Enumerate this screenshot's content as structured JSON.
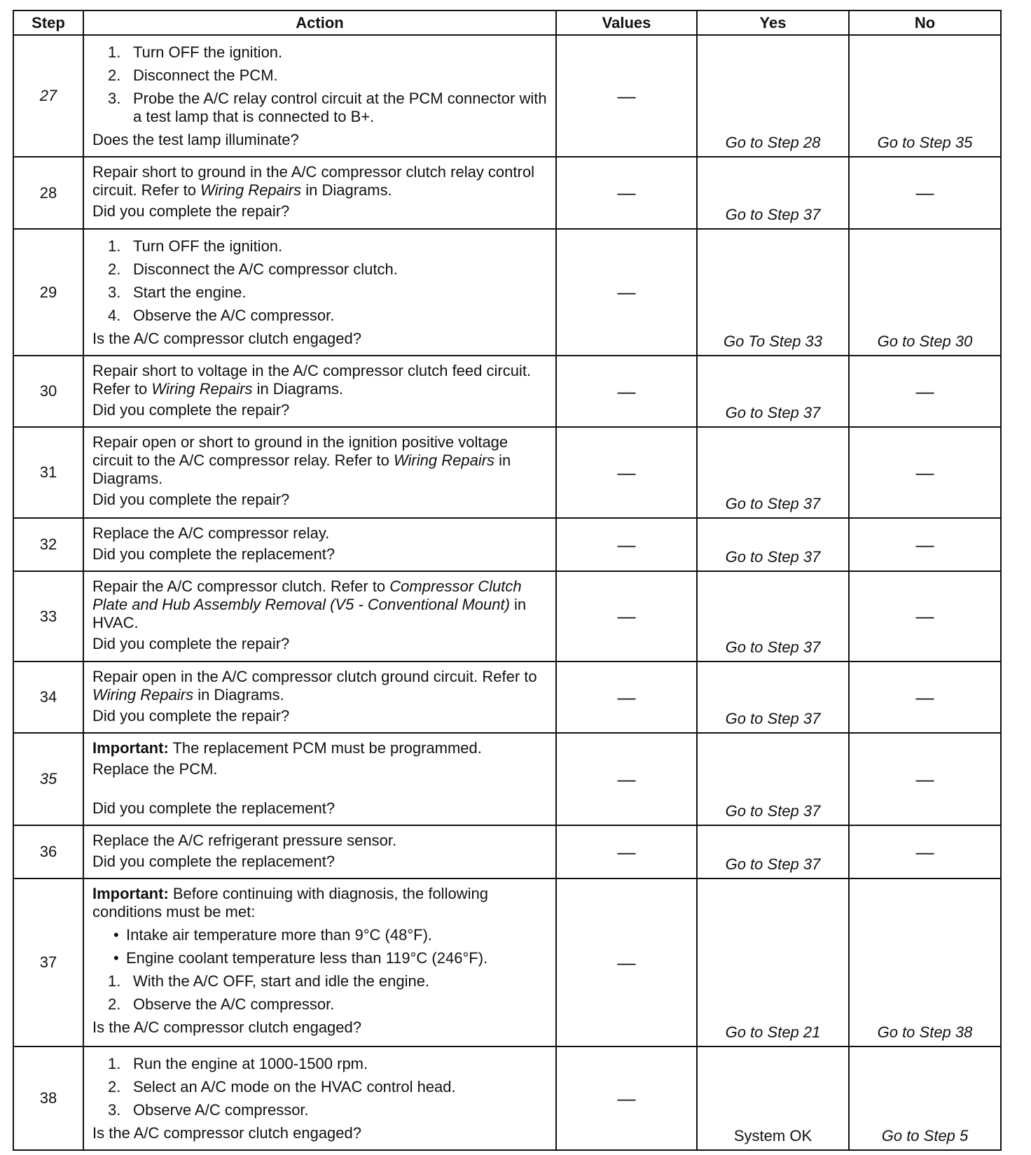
{
  "headers": {
    "step": "Step",
    "action": "Action",
    "values": "Values",
    "yes": "Yes",
    "no": "No"
  },
  "rows": [
    {
      "step": "27",
      "step_italic": true,
      "values": "—",
      "yes": "Go to Step 28",
      "no": "Go to Step 35",
      "action": [
        {
          "type": "ol",
          "num": "1.",
          "segments": [
            {
              "t": "Turn OFF the ignition."
            }
          ]
        },
        {
          "type": "ol",
          "num": "2.",
          "segments": [
            {
              "t": "Disconnect the PCM."
            }
          ]
        },
        {
          "type": "ol",
          "num": "3.",
          "segments": [
            {
              "t": "Probe the A/C relay control circuit at the PCM connector with a test lamp that is connected to B+."
            }
          ]
        },
        {
          "type": "p",
          "segments": [
            {
              "t": "Does the test lamp illuminate?"
            }
          ]
        }
      ]
    },
    {
      "step": "28",
      "values": "—",
      "yes": "Go to Step 37",
      "no": "—",
      "action": [
        {
          "type": "p",
          "segments": [
            {
              "t": "Repair short to ground in the A/C compressor clutch relay control circuit. Refer to "
            },
            {
              "t": "Wiring Repairs",
              "s": "i"
            },
            {
              "t": " in Diagrams."
            }
          ]
        },
        {
          "type": "p",
          "segments": [
            {
              "t": "Did you complete the repair?"
            }
          ]
        }
      ]
    },
    {
      "step": "29",
      "values": "—",
      "yes": "Go To Step 33",
      "no": "Go to Step 30",
      "action": [
        {
          "type": "ol",
          "num": "1.",
          "segments": [
            {
              "t": "Turn OFF the ignition."
            }
          ]
        },
        {
          "type": "ol",
          "num": "2.",
          "segments": [
            {
              "t": "Disconnect the A/C compressor clutch."
            }
          ]
        },
        {
          "type": "ol",
          "num": "3.",
          "segments": [
            {
              "t": "Start the engine."
            }
          ]
        },
        {
          "type": "ol",
          "num": "4.",
          "segments": [
            {
              "t": "Observe the A/C compressor."
            }
          ]
        },
        {
          "type": "p",
          "segments": [
            {
              "t": "Is the A/C compressor clutch engaged?"
            }
          ]
        }
      ]
    },
    {
      "step": "30",
      "values": "—",
      "yes": "Go to Step 37",
      "no": "—",
      "action": [
        {
          "type": "p",
          "segments": [
            {
              "t": "Repair short to voltage in the A/C compressor clutch feed circuit. Refer to "
            },
            {
              "t": "Wiring Repairs",
              "s": "i"
            },
            {
              "t": " in Diagrams."
            }
          ]
        },
        {
          "type": "p",
          "segments": [
            {
              "t": "Did you complete the repair?"
            }
          ]
        }
      ]
    },
    {
      "step": "31",
      "values": "—",
      "yes": "Go to Step 37",
      "no": "—",
      "action": [
        {
          "type": "p",
          "segments": [
            {
              "t": "Repair open or short to ground in the ignition positive voltage circuit to the A/C compressor relay. Refer to "
            },
            {
              "t": "Wiring Repairs",
              "s": "i"
            },
            {
              "t": " in Diagrams."
            }
          ]
        },
        {
          "type": "p",
          "segments": [
            {
              "t": "Did you complete the repair?"
            }
          ]
        }
      ]
    },
    {
      "step": "32",
      "values": "—",
      "yes": "Go to Step 37",
      "no": "—",
      "action": [
        {
          "type": "p",
          "segments": [
            {
              "t": "Replace the A/C compressor relay."
            }
          ]
        },
        {
          "type": "p",
          "segments": [
            {
              "t": "Did you complete the replacement?"
            }
          ]
        }
      ]
    },
    {
      "step": "33",
      "values": "—",
      "yes": "Go to Step 37",
      "no": "—",
      "action": [
        {
          "type": "p",
          "segments": [
            {
              "t": "Repair the A/C compressor clutch. Refer to "
            },
            {
              "t": "Compressor Clutch Plate and Hub Assembly Removal (V5 - Conventional Mount)",
              "s": "i"
            },
            {
              "t": " in HVAC."
            }
          ]
        },
        {
          "type": "p",
          "segments": [
            {
              "t": "Did you complete the repair?"
            }
          ]
        }
      ]
    },
    {
      "step": "34",
      "values": "—",
      "yes": "Go to Step 37",
      "no": "—",
      "action": [
        {
          "type": "p",
          "segments": [
            {
              "t": "Repair open in the A/C compressor clutch ground circuit. Refer to "
            },
            {
              "t": "Wiring Repairs",
              "s": "i"
            },
            {
              "t": " in Diagrams."
            }
          ]
        },
        {
          "type": "p",
          "segments": [
            {
              "t": "Did you complete the repair?"
            }
          ]
        }
      ]
    },
    {
      "step": "35",
      "step_italic": true,
      "values": "—",
      "yes": "Go to Step 37",
      "no": "—",
      "action": [
        {
          "type": "p",
          "segments": [
            {
              "t": "Important:",
              "s": "b"
            },
            {
              "t": " The replacement PCM must be programmed."
            }
          ]
        },
        {
          "type": "p",
          "segments": [
            {
              "t": "Replace the PCM."
            }
          ]
        },
        {
          "type": "spacer",
          "segments": []
        },
        {
          "type": "p",
          "segments": [
            {
              "t": "Did you complete the replacement?"
            }
          ]
        }
      ]
    },
    {
      "step": "36",
      "values": "—",
      "yes": "Go to Step 37",
      "no": "—",
      "action": [
        {
          "type": "p",
          "segments": [
            {
              "t": "Replace the A/C refrigerant pressure sensor."
            }
          ]
        },
        {
          "type": "p",
          "segments": [
            {
              "t": "Did you complete the replacement?"
            }
          ]
        }
      ]
    },
    {
      "step": "37",
      "values": "—",
      "yes": "Go to Step 21",
      "no": "Go to Step 38",
      "action": [
        {
          "type": "p",
          "segments": [
            {
              "t": "Important:",
              "s": "b"
            },
            {
              "t": " Before continuing with diagnosis, the following conditions must be met:"
            }
          ]
        },
        {
          "type": "bl",
          "num": "•",
          "segments": [
            {
              "t": "Intake air temperature more than 9°C (48°F)."
            }
          ]
        },
        {
          "type": "bl",
          "num": "•",
          "segments": [
            {
              "t": "Engine coolant temperature less than 119°C (246°F)."
            }
          ]
        },
        {
          "type": "ol",
          "num": "1.",
          "segments": [
            {
              "t": "With the A/C OFF, start and idle the engine."
            }
          ]
        },
        {
          "type": "ol",
          "num": "2.",
          "segments": [
            {
              "t": "Observe the A/C compressor."
            }
          ]
        },
        {
          "type": "p",
          "segments": [
            {
              "t": "Is the A/C compressor clutch engaged?"
            }
          ]
        }
      ]
    },
    {
      "step": "38",
      "values": "—",
      "yes": "System OK",
      "yes_italic": false,
      "no": "Go to Step 5",
      "action": [
        {
          "type": "ol",
          "num": "1.",
          "segments": [
            {
              "t": "Run the engine at 1000-1500 rpm."
            }
          ]
        },
        {
          "type": "ol",
          "num": "2.",
          "segments": [
            {
              "t": "Select an A/C mode on the HVAC control head."
            }
          ]
        },
        {
          "type": "ol",
          "num": "3.",
          "segments": [
            {
              "t": "Observe A/C compressor."
            }
          ]
        },
        {
          "type": "p",
          "segments": [
            {
              "t": "Is the A/C compressor clutch engaged?"
            }
          ]
        }
      ]
    }
  ]
}
